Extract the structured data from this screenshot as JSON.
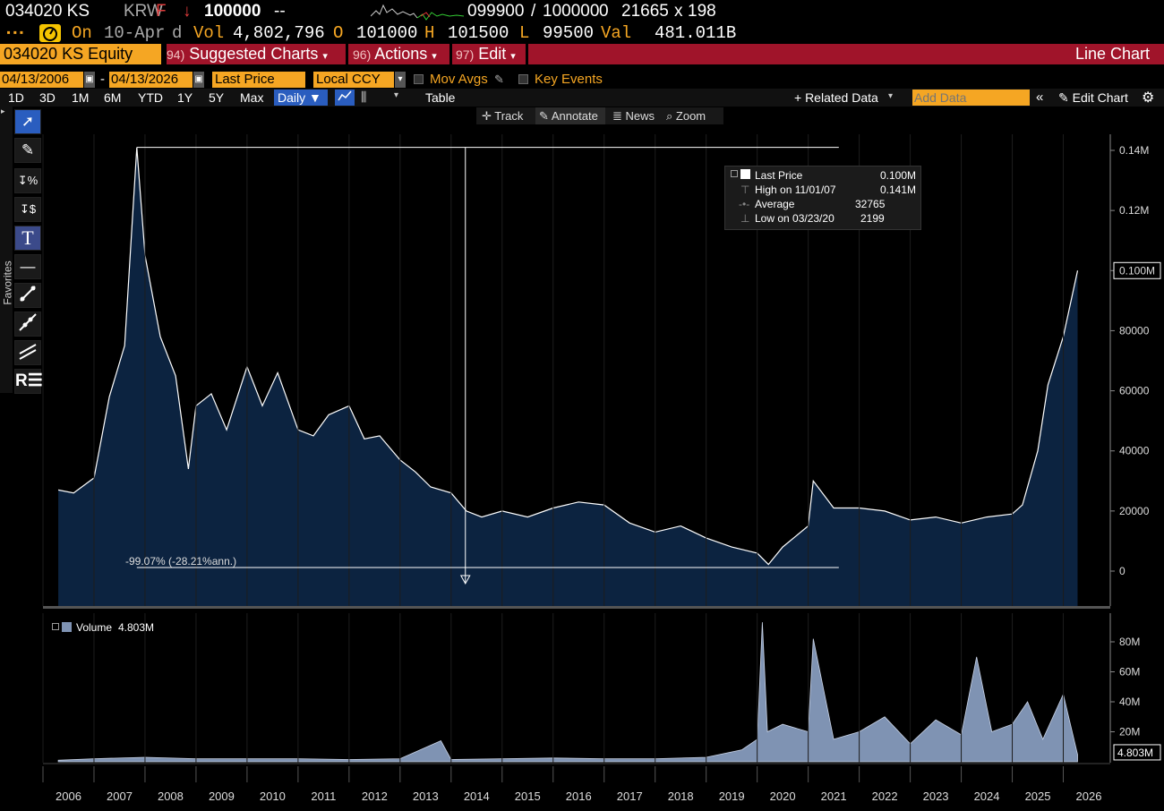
{
  "quote": {
    "ticker": "034020 KS",
    "currency": "KRW",
    "flag": "F",
    "arrow": "↓",
    "price": "100000",
    "dashes": "--",
    "bid": "099900",
    "slash": "/",
    "ask": "100000",
    "ask_suffix": "0",
    "bidsize": "21665",
    "x": "x",
    "asksize": "198"
  },
  "quote2": {
    "prefix": "On",
    "date": "10-Apr",
    "d": "d",
    "vol_label": "Vol",
    "vol": "4,802,796",
    "o_label": "O",
    "open": "101000",
    "h_label": "H",
    "high": "101500",
    "l_label": "L",
    "low": "99500",
    "val_label": "Val",
    "value": "481.011B"
  },
  "menubar": {
    "security": "034020 KS Equity",
    "suggested_num": "94)",
    "suggested": "Suggested Charts",
    "actions_num": "96)",
    "actions": "Actions",
    "edit_num": "97)",
    "edit": "Edit",
    "chart_type": "Line Chart"
  },
  "controls": {
    "start_date": "04/13/2006",
    "dash": "-",
    "end_date": "04/13/2026",
    "field": "Last Price",
    "ccy": "Local CCY",
    "mov_avgs": "Mov Avgs",
    "key_events": "Key Events"
  },
  "periods": [
    "1D",
    "3D",
    "1M",
    "6M",
    "YTD",
    "1Y",
    "5Y",
    "Max"
  ],
  "toolbar": {
    "freq": "Daily ▼",
    "table": "Table",
    "related": "+ Related Data",
    "add_data_placeholder": "Add Data",
    "edit_chart": "Edit Chart"
  },
  "plot_tools": {
    "track": "Track",
    "annotate": "Annotate",
    "news": "News",
    "zoom": "Zoom"
  },
  "sidebar": {
    "favorites": "Favorites"
  },
  "legend": {
    "last_label": "Last Price",
    "last_val": "0.100M",
    "high_label": "High on 11/01/07",
    "high_val": "0.141M",
    "avg_label": "Average",
    "avg_val": "32765",
    "low_label": "Low on 03/23/20",
    "low_val": "2199"
  },
  "annotation": {
    "text": "-99.07% (-28.21%ann.)"
  },
  "volume_legend": {
    "label": "Volume",
    "value": "4.803M"
  },
  "colors": {
    "accent": "#f5a623",
    "menubar": "#a0142a",
    "area_fill": "#0c2340",
    "volume_fill": "#7f93b3"
  },
  "chart_data": [
    {
      "type": "area",
      "series": [
        {
          "name": "Last Price"
        }
      ],
      "x": [
        2006.3,
        2006.6,
        2007.0,
        2007.3,
        2007.6,
        2007.84,
        2008.0,
        2008.3,
        2008.6,
        2008.85,
        2009.0,
        2009.3,
        2009.6,
        2010.0,
        2010.3,
        2010.6,
        2011.0,
        2011.3,
        2011.6,
        2012.0,
        2012.3,
        2012.6,
        2013.0,
        2013.3,
        2013.6,
        2014.0,
        2014.3,
        2014.6,
        2015.0,
        2015.5,
        2016.0,
        2016.5,
        2017.0,
        2017.5,
        2018.0,
        2018.5,
        2019.0,
        2019.5,
        2020.0,
        2020.22,
        2020.5,
        2021.0,
        2021.1,
        2021.5,
        2022.0,
        2022.5,
        2023.0,
        2023.5,
        2024.0,
        2024.5,
        2025.0,
        2025.2,
        2025.5,
        2025.7,
        2026.0,
        2026.28
      ],
      "y": [
        27000,
        26000,
        31000,
        58000,
        75000,
        141000,
        105000,
        78000,
        65000,
        34000,
        55000,
        59000,
        47000,
        68000,
        55000,
        66000,
        47000,
        45000,
        52000,
        55000,
        44000,
        45000,
        37000,
        33000,
        28000,
        26000,
        20000,
        18000,
        20000,
        18000,
        21000,
        23000,
        22000,
        16000,
        13000,
        15000,
        11000,
        8000,
        6000,
        2199,
        8000,
        15000,
        30000,
        21000,
        21000,
        20000,
        17000,
        18000,
        16000,
        18000,
        19000,
        22000,
        40000,
        62000,
        78000,
        100000
      ],
      "ylim": [
        -10000,
        145000
      ],
      "xlim": [
        2006,
        2026.5
      ],
      "y_ticks": [
        "0",
        "20000",
        "40000",
        "60000",
        "80000",
        "0.100M",
        "0.12M",
        "0.14M"
      ],
      "x_ticks": [
        "2006",
        "2007",
        "2008",
        "2009",
        "2010",
        "2011",
        "2012",
        "2013",
        "2014",
        "2015",
        "2016",
        "2017",
        "2018",
        "2019",
        "2020",
        "2021",
        "2022",
        "2023",
        "2024",
        "2025",
        "2026"
      ]
    },
    {
      "type": "area",
      "series": [
        {
          "name": "Volume"
        }
      ],
      "x": [
        2006.3,
        2007.0,
        2008.0,
        2009.0,
        2010.0,
        2011.0,
        2012.0,
        2013.0,
        2013.8,
        2014.0,
        2015.0,
        2016.0,
        2017.0,
        2018.0,
        2019.0,
        2019.7,
        2020.0,
        2020.1,
        2020.2,
        2020.5,
        2021.0,
        2021.1,
        2021.5,
        2022.0,
        2022.5,
        2023.0,
        2023.5,
        2024.0,
        2024.3,
        2024.6,
        2025.0,
        2025.3,
        2025.6,
        2026.0,
        2026.28
      ],
      "y": [
        1000000,
        2000000,
        3000000,
        2000000,
        2000000,
        2000000,
        1500000,
        2000000,
        14000000,
        1500000,
        2000000,
        2500000,
        2000000,
        2000000,
        3000000,
        8000000,
        15000000,
        93000000,
        20000000,
        25000000,
        20000000,
        82000000,
        15000000,
        20000000,
        30000000,
        12000000,
        28000000,
        18000000,
        70000000,
        20000000,
        25000000,
        40000000,
        15000000,
        45000000,
        4803000
      ],
      "ylim": [
        -5000000,
        95000000
      ],
      "y_ticks": [
        "20M",
        "40M",
        "60M",
        "80M",
        "4.803M"
      ]
    }
  ]
}
